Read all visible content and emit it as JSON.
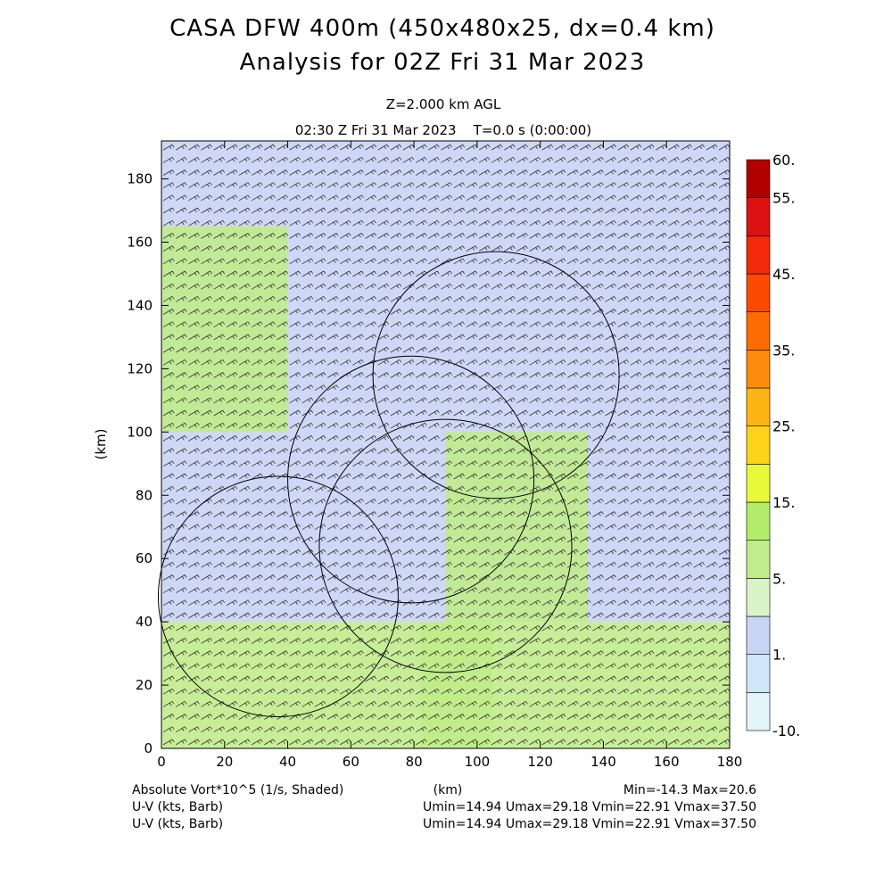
{
  "chart_data": {
    "type": "heatmap",
    "title_lines": [
      "CASA DFW 400m (450x480x25, dx=0.4 km)",
      "Analysis for 02Z Fri 31 Mar 2023"
    ],
    "subtitle_lines": [
      "Z=2.000 km AGL",
      "02:30 Z Fri 31 Mar 2023    T=0.0 s (0:00:00)"
    ],
    "xlabel": "(km)",
    "ylabel": "(km)",
    "xlim": [
      0,
      180
    ],
    "ylim": [
      0,
      192
    ],
    "xticks": [
      0,
      20,
      40,
      60,
      80,
      100,
      120,
      140,
      160,
      180
    ],
    "yticks": [
      0,
      20,
      40,
      60,
      80,
      100,
      120,
      140,
      160,
      180
    ],
    "field": "Absolute Vort*10^5 (1/s, Shaded)",
    "field_min": -14.3,
    "field_max": 20.6,
    "colorbar": {
      "labels": [
        "60.",
        "55.",
        "45.",
        "35.",
        "25.",
        "15.",
        "5.",
        "1.",
        "-10."
      ],
      "label_levels": [
        60,
        55,
        45,
        35,
        25,
        15,
        5,
        1,
        -10
      ],
      "levels": [
        -10,
        -5,
        1,
        3,
        5,
        10,
        15,
        20,
        25,
        30,
        35,
        40,
        45,
        50,
        55,
        60
      ],
      "colors": [
        "#e4f4fb",
        "#cfe6f8",
        "#c9d4f5",
        "#d9f4c6",
        "#c1ec8c",
        "#b2ec6a",
        "#e7f93a",
        "#fcd319",
        "#fdb515",
        "#fd8c0c",
        "#fd6b03",
        "#fd4a02",
        "#f3290b",
        "#db1211",
        "#b10100"
      ]
    },
    "vectors": "U-V (kts, Barb)",
    "footer": {
      "left": [
        "Absolute Vort*10^5 (1/s, Shaded)",
        "U-V (kts, Barb)",
        "U-V (kts, Barb)"
      ],
      "center": "(km)",
      "right": [
        "Min=-14.3 Max=20.6",
        "Umin=14.94 Umax=29.18 Vmin=22.91 Vmax=37.50",
        "Umin=14.94 Umax=29.18 Vmin=22.91 Vmax=37.50"
      ]
    },
    "radar_rings": [
      {
        "cx": 37,
        "cy": 48,
        "r": 38
      },
      {
        "cx": 79,
        "cy": 85,
        "r": 39
      },
      {
        "cx": 90,
        "cy": 64,
        "r": 40
      },
      {
        "cx": 106,
        "cy": 118,
        "r": 39
      }
    ],
    "shading_regions": [
      {
        "x": [
          0,
          180
        ],
        "y": [
          0,
          40
        ],
        "value": 7
      },
      {
        "x": [
          0,
          40
        ],
        "y": [
          100,
          165
        ],
        "value": 6
      },
      {
        "x": [
          82,
          105
        ],
        "y": [
          0,
          40
        ],
        "value": 14
      },
      {
        "x": [
          90,
          135
        ],
        "y": [
          40,
          100
        ],
        "value": 6
      },
      {
        "x": [
          0,
          180
        ],
        "y": [
          40,
          192
        ],
        "value": 2
      }
    ]
  }
}
